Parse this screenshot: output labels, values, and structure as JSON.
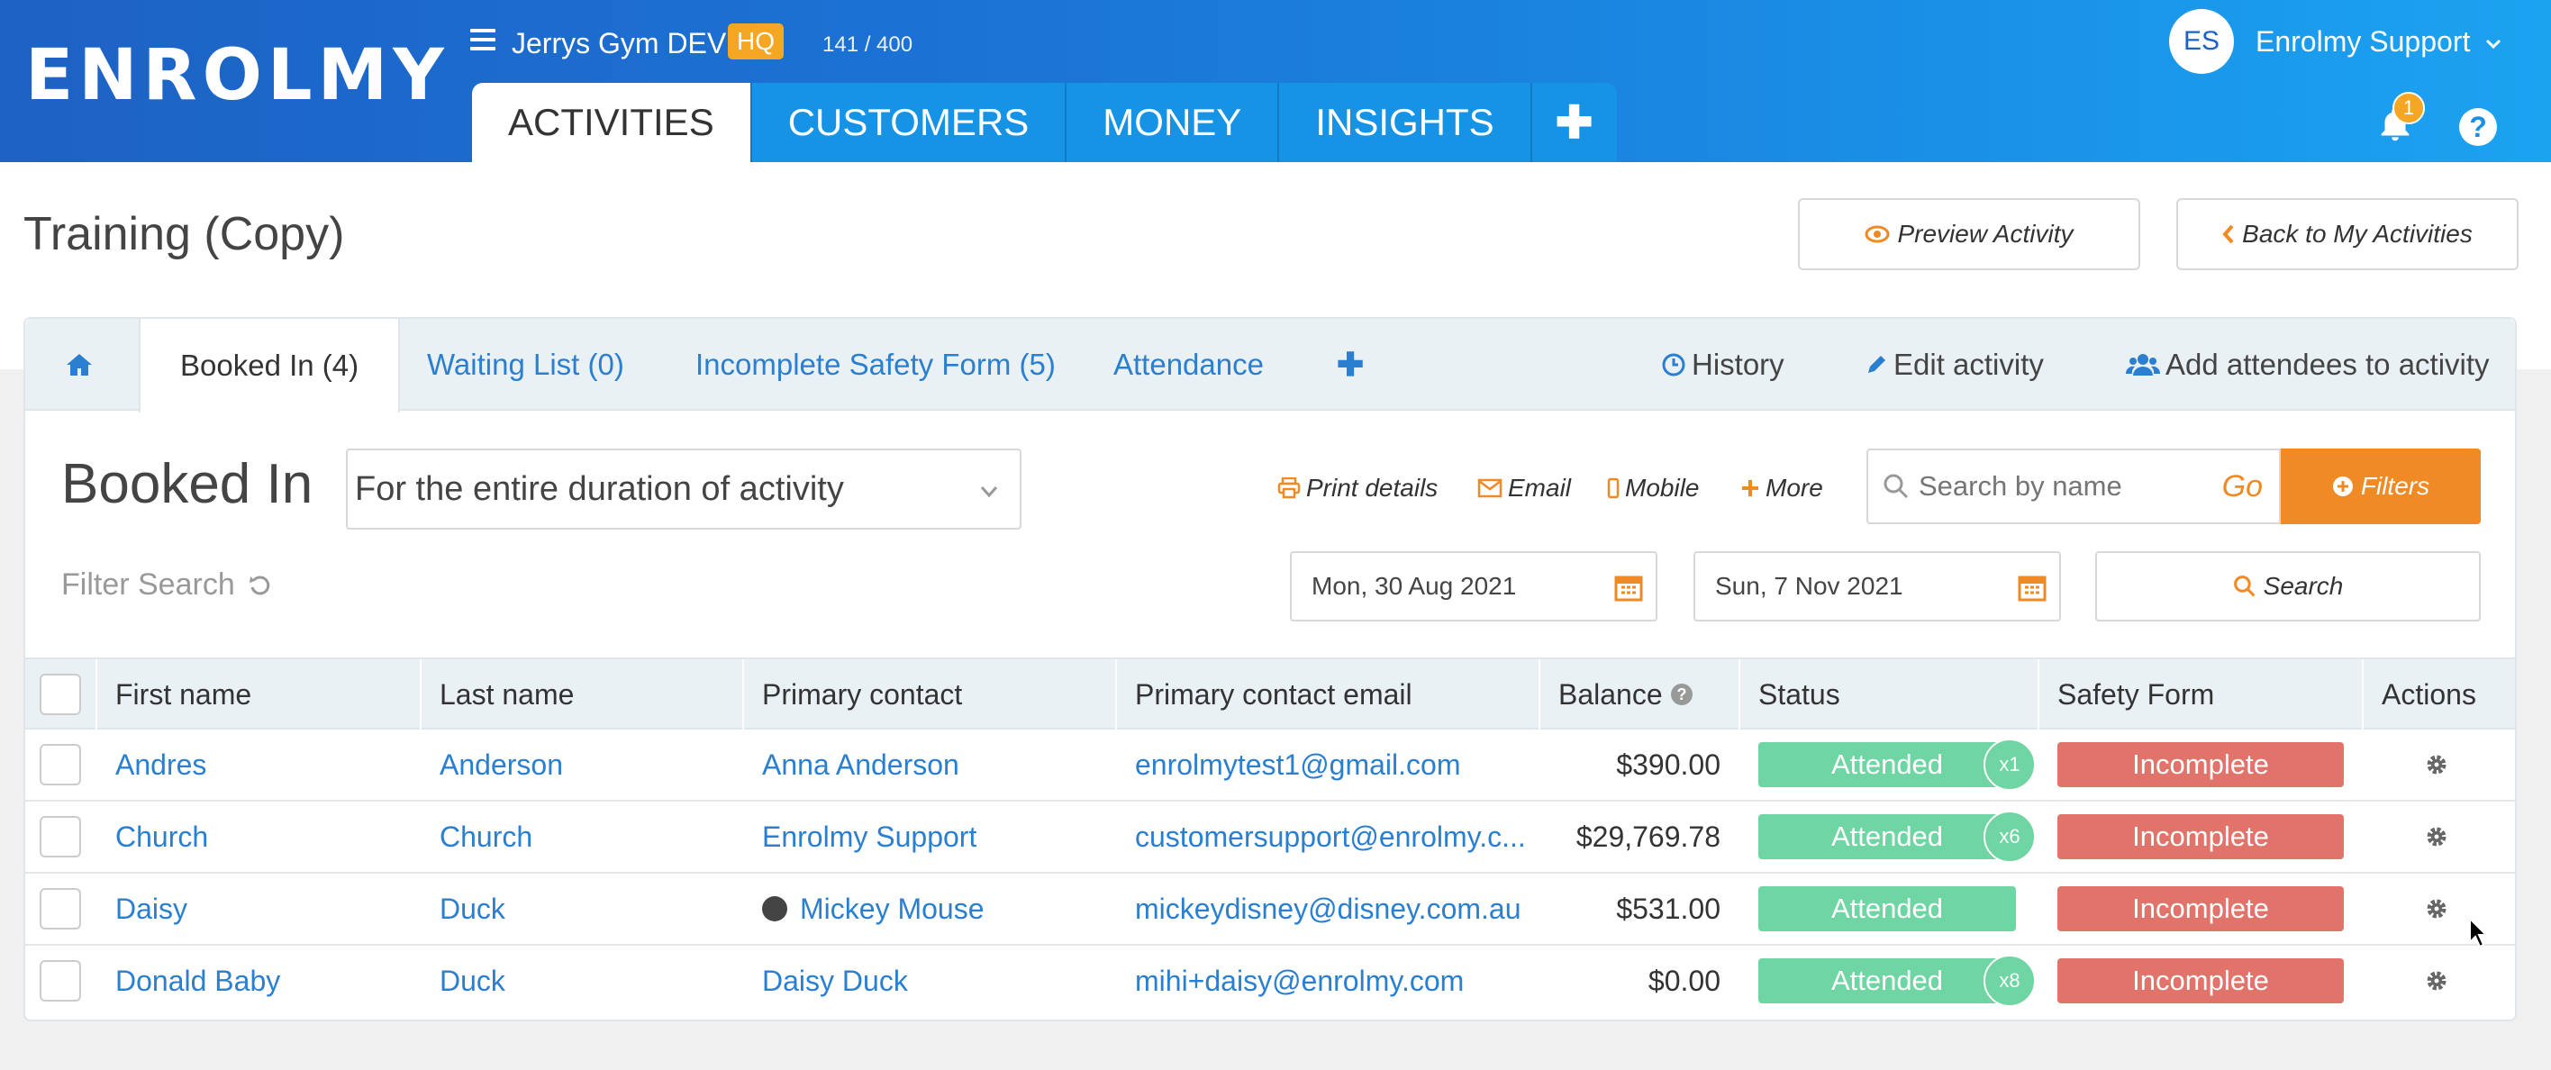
{
  "header": {
    "logo": "ENROLMY",
    "gym_name": "Jerrys Gym DEV",
    "hq_badge": "HQ",
    "count": "141 / 400",
    "user_initials": "ES",
    "user_name": "Enrolmy Support",
    "notification_count": "1",
    "help_label": "?",
    "nav": [
      {
        "label": "ACTIVITIES",
        "active": true
      },
      {
        "label": "CUSTOMERS",
        "active": false
      },
      {
        "label": "MONEY",
        "active": false
      },
      {
        "label": "INSIGHTS",
        "active": false
      }
    ],
    "nav_plus": "✚"
  },
  "page": {
    "title": "Training (Copy)",
    "preview_label": "Preview Activity",
    "back_label": "Back to My Activities"
  },
  "subtabs": {
    "booked_in": "Booked In (4)",
    "waiting_list": "Waiting List (0)",
    "incomplete_safety": "Incomplete Safety Form (5)",
    "attendance": "Attendance",
    "plus": "✚",
    "history": "History",
    "edit_activity": "Edit activity",
    "add_attendees": "Add attendees to activity"
  },
  "toolbar": {
    "section_title": "Booked In",
    "duration_select": "For the entire duration of activity",
    "print": "Print details",
    "email": "Email",
    "mobile": "Mobile",
    "more": "More",
    "search_placeholder": "Search by name",
    "go": "Go",
    "filters": "Filters",
    "filter_search": "Filter Search",
    "date_from": "Mon, 30 Aug 2021",
    "date_to": "Sun, 7 Nov 2021",
    "search_button": "Search"
  },
  "table": {
    "columns": [
      "First name",
      "Last name",
      "Primary contact",
      "Primary contact email",
      "Balance",
      "Status",
      "Safety Form",
      "Actions"
    ],
    "rows": [
      {
        "first": "Andres",
        "last": "Anderson",
        "contact": "Anna Anderson",
        "email": "enrolmytest1@gmail.com",
        "balance": "$390.00",
        "status": "Attended",
        "mult": "x1",
        "safety": "Incomplete"
      },
      {
        "first": "Church",
        "last": "Church",
        "contact": "Enrolmy Support",
        "email": "customersupport@enrolmy.c...",
        "balance": "$29,769.78",
        "status": "Attended",
        "mult": "x6",
        "safety": "Incomplete"
      },
      {
        "first": "Daisy",
        "last": "Duck",
        "contact": "Mickey Mouse",
        "email": "mickeydisney@disney.com.au",
        "balance": "$531.00",
        "status": "Attended",
        "mult": "",
        "safety": "Incomplete"
      },
      {
        "first": "Donald Baby",
        "last": "Duck",
        "contact": "Daisy Duck",
        "email": "mihi+daisy@enrolmy.com",
        "balance": "$0.00",
        "status": "Attended",
        "mult": "x8",
        "safety": "Incomplete"
      }
    ]
  },
  "colors": {
    "brand_blue": "#1d62c4",
    "accent_orange": "#f08a24",
    "status_green": "#6fd6a3",
    "safety_red": "#e2736a",
    "link_blue": "#2a7fd0"
  }
}
